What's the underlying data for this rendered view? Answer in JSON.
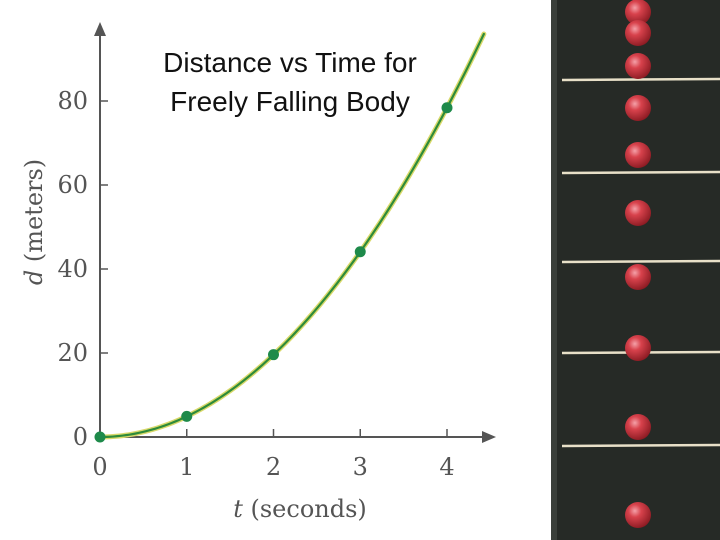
{
  "chart_data": {
    "type": "line",
    "title": "Distance vs Time for Freely Falling Body",
    "title_lines": [
      "Distance vs Time for",
      "Freely Falling Body"
    ],
    "xlabel": {
      "var": "t",
      "rest": " (seconds)"
    },
    "ylabel": {
      "var": "d",
      "rest": " (meters)"
    },
    "xlim": [
      0,
      4.5
    ],
    "ylim": [
      0,
      96
    ],
    "x_ticks": [
      0,
      1,
      2,
      3,
      4
    ],
    "y_ticks": [
      0,
      20,
      40,
      60,
      80
    ],
    "grid": false,
    "legend": "none",
    "curve_function": "4.9*t^2",
    "series": [
      {
        "x": [
          0,
          1,
          2,
          3,
          4
        ],
        "y": [
          0,
          4.9,
          19.6,
          44.1,
          78.4
        ]
      }
    ],
    "colors": {
      "curve": "#2e8b3a",
      "curve_halo": "#d9d96a",
      "points": "#1e8a4a",
      "axes": "#555555"
    }
  },
  "photo": {
    "subject": "strobe photograph of falling red ball",
    "colors": {
      "background": "#262a26",
      "ball": "#c8303a",
      "ball_highlight": "#f4a0a8",
      "rule": "#e8e0c8"
    }
  }
}
